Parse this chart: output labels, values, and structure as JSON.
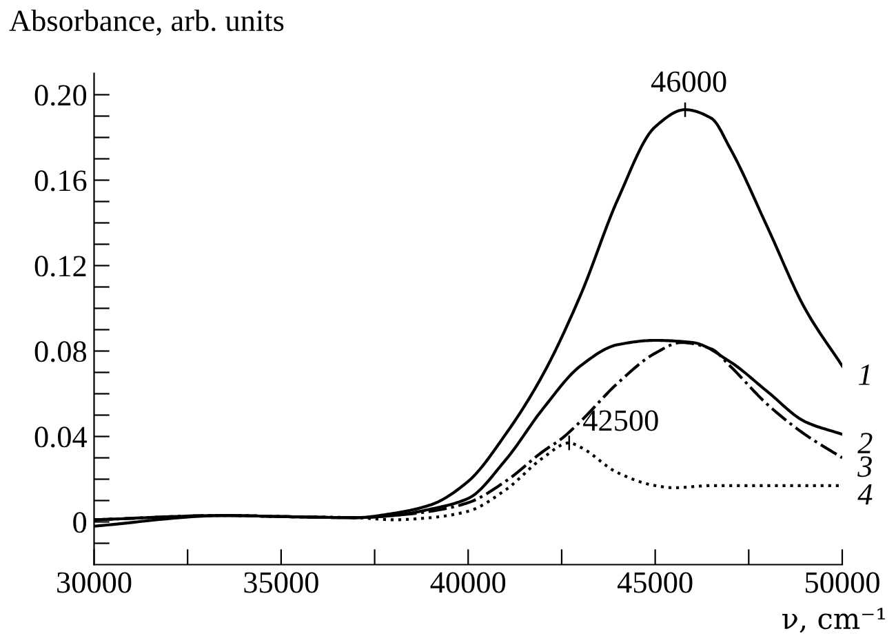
{
  "chart_data": {
    "type": "line",
    "ylabel": "Absorbance, arb. units",
    "xlabel": "ν, cm⁻¹",
    "xlim": [
      30000,
      50000
    ],
    "ylim": [
      -0.02,
      0.21
    ],
    "xticks": [
      {
        "value": 30000,
        "label": "30000"
      },
      {
        "value": 32500,
        "label": null
      },
      {
        "value": 35000,
        "label": "35000"
      },
      {
        "value": 37500,
        "label": null
      },
      {
        "value": 40000,
        "label": "40000"
      },
      {
        "value": 42500,
        "label": null
      },
      {
        "value": 45000,
        "label": "45000"
      },
      {
        "value": 47500,
        "label": null
      },
      {
        "value": 50000,
        "label": "50000"
      }
    ],
    "yticks": [
      {
        "value": -0.01,
        "label": null
      },
      0,
      {
        "value": 0.01,
        "label": null
      },
      {
        "value": 0.02,
        "label": null
      },
      {
        "value": 0.03,
        "label": null
      },
      0.04,
      {
        "value": 0.05,
        "label": null
      },
      {
        "value": 0.06,
        "label": null
      },
      {
        "value": 0.07,
        "label": null
      },
      0.08,
      {
        "value": 0.09,
        "label": null
      },
      {
        "value": 0.1,
        "label": null
      },
      {
        "value": 0.11,
        "label": null
      },
      0.12,
      {
        "value": 0.13,
        "label": null
      },
      {
        "value": 0.14,
        "label": null
      },
      {
        "value": 0.15,
        "label": null
      },
      0.16,
      {
        "value": 0.17,
        "label": null
      },
      {
        "value": 0.18,
        "label": null
      },
      {
        "value": 0.19,
        "label": null
      },
      {
        "value": 0.2,
        "label": "0.20"
      }
    ],
    "grid": false,
    "legend": false,
    "marker": "none",
    "series": [
      {
        "name": "1",
        "color": "#000000",
        "line_style": "solid",
        "x": [
          30000,
          33500,
          35000,
          37000,
          38000,
          39000,
          40000,
          41000,
          42000,
          43000,
          44000,
          45000,
          45800,
          46500,
          47000,
          48000,
          49000,
          50000
        ],
        "values": [
          -0.002,
          0.003,
          0.0025,
          0.002,
          0.004,
          0.008,
          0.019,
          0.041,
          0.069,
          0.106,
          0.151,
          0.185,
          0.193,
          0.189,
          0.175,
          0.138,
          0.1,
          0.073
        ]
      },
      {
        "name": "2",
        "color": "#000000",
        "line_style": "solid",
        "x": [
          30000,
          33500,
          35000,
          37000,
          38000,
          39000,
          40000,
          41000,
          42000,
          43000,
          44000,
          45000,
          46000,
          47000,
          48000,
          49000,
          50000
        ],
        "values": [
          0.001,
          0.003,
          0.0025,
          0.002,
          0.003,
          0.006,
          0.011,
          0.029,
          0.053,
          0.073,
          0.083,
          0.085,
          0.084,
          0.075,
          0.061,
          0.047,
          0.041
        ]
      },
      {
        "name": "3",
        "color": "#000000",
        "line_style": "dashdot",
        "x": [
          30000,
          33500,
          35000,
          37000,
          38000,
          39000,
          40000,
          41000,
          42000,
          42500,
          43000,
          44000,
          45000,
          45700,
          46500,
          47000,
          48000,
          49000,
          50000
        ],
        "values": [
          0.001,
          0.003,
          0.0025,
          0.002,
          0.003,
          0.005,
          0.009,
          0.019,
          0.033,
          0.039,
          0.047,
          0.065,
          0.079,
          0.084,
          0.081,
          0.073,
          0.055,
          0.041,
          0.03
        ]
      },
      {
        "name": "4",
        "color": "#000000",
        "line_style": "dotted",
        "x": [
          30000,
          33500,
          35000,
          37000,
          38000,
          39000,
          40000,
          41000,
          42000,
          42700,
          43000,
          44000,
          45000,
          45500,
          46500,
          48000,
          50000
        ],
        "values": [
          0.001,
          0.003,
          0.0025,
          0.002,
          0.001,
          0.002,
          0.005,
          0.015,
          0.03,
          0.037,
          0.035,
          0.023,
          0.017,
          0.016,
          0.017,
          0.017,
          0.017
        ]
      }
    ],
    "annotations": [
      {
        "text": "46000",
        "x": 45800,
        "y": 0.193
      },
      {
        "text": "42500",
        "x": 42700,
        "y": 0.037
      }
    ]
  }
}
